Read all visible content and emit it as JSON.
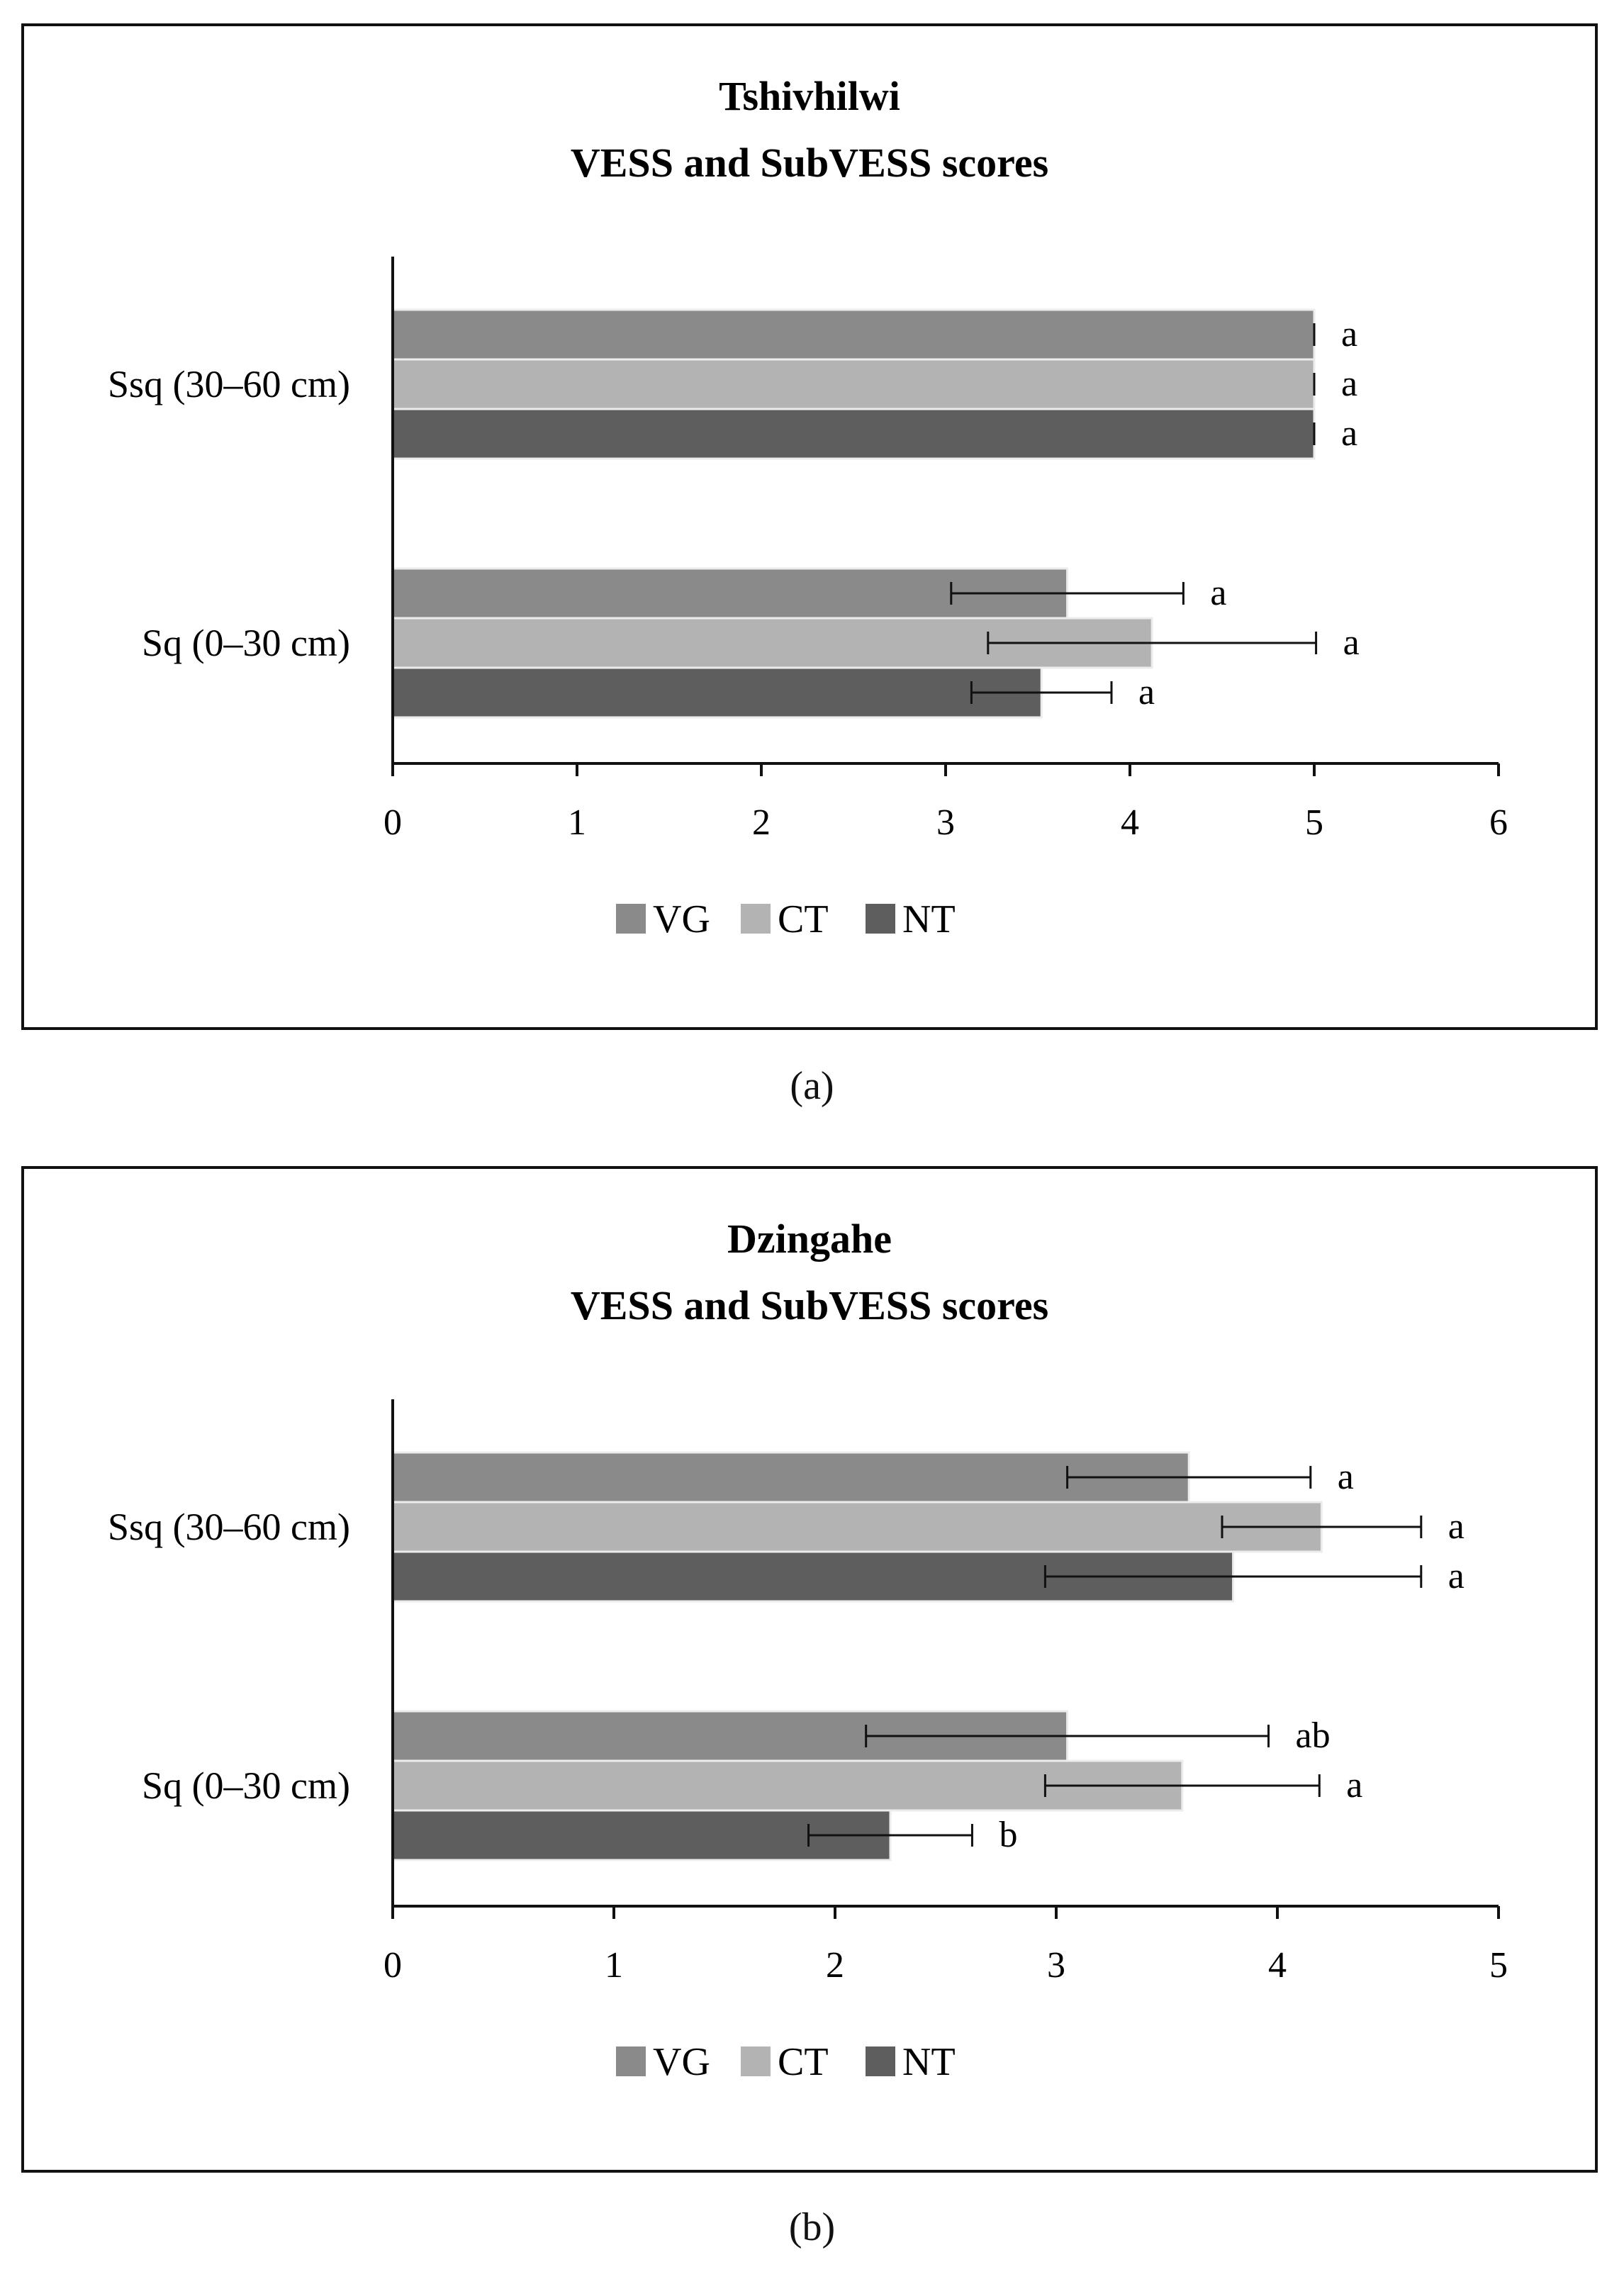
{
  "colors": {
    "VG": "#8a8a8a",
    "CT": "#b3b3b3",
    "NT": "#5e5e5e",
    "axis": "#111111",
    "errorbar": "#111111"
  },
  "panel_labels": [
    "(a)",
    "(b)"
  ],
  "chart_data": [
    {
      "type": "bar",
      "orientation": "horizontal",
      "title": "Tshivhilwi",
      "subtitle": "VESS and SubVESS scores",
      "categories": [
        "Ssq (30–60 cm)",
        "Sq (0–30 cm)"
      ],
      "series": [
        {
          "name": "VG",
          "values": [
            5.0,
            3.66
          ],
          "errors": [
            0.0,
            0.63
          ],
          "letters": [
            "a",
            "a"
          ]
        },
        {
          "name": "CT",
          "values": [
            5.0,
            4.12
          ],
          "errors": [
            0.0,
            0.89
          ],
          "letters": [
            "a",
            "a"
          ]
        },
        {
          "name": "NT",
          "values": [
            5.0,
            3.52
          ],
          "errors": [
            0.0,
            0.38
          ],
          "letters": [
            "a",
            "a"
          ]
        }
      ],
      "xlim": [
        0,
        6
      ],
      "xticks": [
        "0",
        "1",
        "2",
        "3",
        "4",
        "5",
        "6"
      ],
      "legend": [
        "VG",
        "CT",
        "NT"
      ],
      "legend_position": "bottom",
      "grid": false
    },
    {
      "type": "bar",
      "orientation": "horizontal",
      "title": "Dzingahe",
      "subtitle": "VESS and SubVESS scores",
      "categories": [
        "Ssq (30–60 cm)",
        "Sq (0–30 cm)"
      ],
      "series": [
        {
          "name": "VG",
          "values": [
            3.6,
            3.05
          ],
          "errors": [
            0.55,
            0.91
          ],
          "letters": [
            "a",
            "ab"
          ]
        },
        {
          "name": "CT",
          "values": [
            4.2,
            3.57
          ],
          "errors": [
            0.45,
            0.62
          ],
          "letters": [
            "a",
            "a"
          ]
        },
        {
          "name": "NT",
          "values": [
            3.8,
            2.25
          ],
          "errors": [
            0.85,
            0.37
          ],
          "letters": [
            "a",
            "b"
          ]
        }
      ],
      "xlim": [
        0,
        5
      ],
      "xticks": [
        "0",
        "1",
        "2",
        "3",
        "4",
        "5"
      ],
      "legend": [
        "VG",
        "CT",
        "NT"
      ],
      "legend_position": "bottom",
      "grid": false
    }
  ]
}
